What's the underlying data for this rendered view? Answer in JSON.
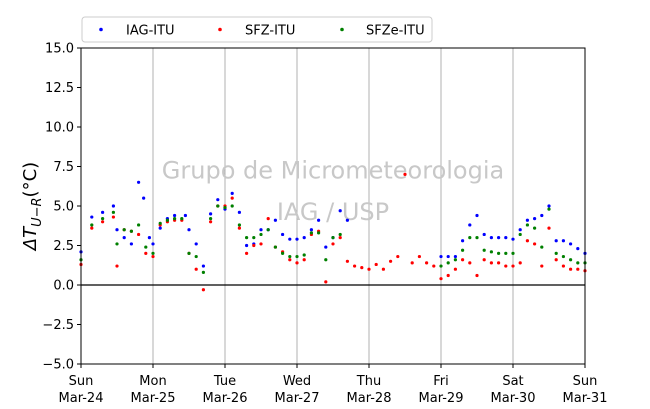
{
  "chart_data": {
    "type": "scatter",
    "title": "",
    "xlabel": "",
    "ylabel": "ΔT_{U−R}(°C)",
    "ylim": [
      -5.0,
      15.0
    ],
    "yticks": [
      -5.0,
      -2.5,
      0.0,
      2.5,
      5.0,
      7.5,
      10.0,
      12.5,
      15.0
    ],
    "ytick_labels": [
      "−5.0",
      "−2.5",
      "0.0",
      "2.5",
      "5.0",
      "7.5",
      "10.0",
      "12.5",
      "15.0"
    ],
    "xlim": [
      0,
      7
    ],
    "xtick_labels": [
      {
        "day": "Sun",
        "date": "Mar-24"
      },
      {
        "day": "Mon",
        "date": "Mar-25"
      },
      {
        "day": "Tue",
        "date": "Mar-26"
      },
      {
        "day": "Wed",
        "date": "Mar-27"
      },
      {
        "day": "Thu",
        "date": "Mar-28"
      },
      {
        "day": "Fri",
        "date": "Mar-29"
      },
      {
        "day": "Sat",
        "date": "Mar-30"
      },
      {
        "day": "Sun",
        "date": "Mar-31"
      }
    ],
    "grid": "vertical",
    "zero_line": 0.0,
    "legend_position": "top",
    "watermark": [
      "Grupo de Micrometeorologia",
      "IAG / USP"
    ],
    "series": [
      {
        "name": "IAG-ITU",
        "color": "#0000ff",
        "points": [
          [
            0.0,
            2.1
          ],
          [
            0.15,
            4.3
          ],
          [
            0.3,
            4.6
          ],
          [
            0.45,
            5.0
          ],
          [
            0.5,
            3.5
          ],
          [
            0.6,
            3.0
          ],
          [
            0.7,
            2.6
          ],
          [
            0.8,
            6.5
          ],
          [
            0.87,
            5.5
          ],
          [
            0.95,
            3.0
          ],
          [
            1.0,
            2.6
          ],
          [
            1.1,
            3.6
          ],
          [
            1.2,
            4.2
          ],
          [
            1.3,
            4.4
          ],
          [
            1.45,
            4.4
          ],
          [
            1.5,
            3.5
          ],
          [
            1.6,
            2.6
          ],
          [
            1.7,
            1.2
          ],
          [
            1.8,
            4.5
          ],
          [
            1.9,
            5.4
          ],
          [
            2.0,
            4.8
          ],
          [
            2.1,
            5.8
          ],
          [
            2.2,
            4.6
          ],
          [
            2.3,
            2.5
          ],
          [
            2.4,
            2.6
          ],
          [
            2.5,
            3.5
          ],
          [
            2.6,
            3.5
          ],
          [
            2.7,
            4.1
          ],
          [
            2.8,
            3.2
          ],
          [
            2.9,
            2.9
          ],
          [
            3.0,
            2.9
          ],
          [
            3.1,
            3.0
          ],
          [
            3.2,
            3.5
          ],
          [
            3.3,
            4.1
          ],
          [
            3.4,
            2.4
          ],
          [
            3.5,
            3.0
          ],
          [
            3.6,
            4.7
          ],
          [
            3.7,
            4.1
          ],
          [
            5.0,
            1.8
          ],
          [
            5.1,
            1.8
          ],
          [
            5.2,
            1.8
          ],
          [
            5.3,
            2.8
          ],
          [
            5.4,
            3.8
          ],
          [
            5.5,
            4.4
          ],
          [
            5.6,
            3.2
          ],
          [
            5.7,
            3.0
          ],
          [
            5.8,
            3.0
          ],
          [
            5.9,
            3.0
          ],
          [
            6.0,
            2.9
          ],
          [
            6.1,
            3.5
          ],
          [
            6.2,
            4.1
          ],
          [
            6.3,
            4.2
          ],
          [
            6.4,
            4.4
          ],
          [
            6.5,
            5.0
          ],
          [
            6.6,
            2.8
          ],
          [
            6.7,
            2.8
          ],
          [
            6.8,
            2.6
          ],
          [
            6.9,
            2.3
          ],
          [
            7.0,
            2.0
          ]
        ]
      },
      {
        "name": "SFZ-ITU",
        "color": "#ff0000",
        "points": [
          [
            0.0,
            1.3
          ],
          [
            0.15,
            3.6
          ],
          [
            0.3,
            4.0
          ],
          [
            0.45,
            4.3
          ],
          [
            0.5,
            1.2
          ],
          [
            0.6,
            3.5
          ],
          [
            0.7,
            3.4
          ],
          [
            0.8,
            3.2
          ],
          [
            0.9,
            2.0
          ],
          [
            1.0,
            1.8
          ],
          [
            1.1,
            3.8
          ],
          [
            1.2,
            4.0
          ],
          [
            1.3,
            4.1
          ],
          [
            1.4,
            4.1
          ],
          [
            1.5,
            2.0
          ],
          [
            1.6,
            1.0
          ],
          [
            1.7,
            -0.3
          ],
          [
            1.8,
            4.0
          ],
          [
            1.9,
            5.0
          ],
          [
            2.0,
            5.0
          ],
          [
            2.1,
            5.5
          ],
          [
            2.2,
            3.6
          ],
          [
            2.3,
            2.0
          ],
          [
            2.4,
            2.5
          ],
          [
            2.5,
            2.6
          ],
          [
            2.6,
            4.2
          ],
          [
            2.7,
            2.4
          ],
          [
            2.8,
            2.1
          ],
          [
            2.9,
            1.6
          ],
          [
            3.0,
            1.4
          ],
          [
            3.1,
            1.6
          ],
          [
            3.2,
            3.2
          ],
          [
            3.3,
            3.4
          ],
          [
            3.4,
            0.2
          ],
          [
            3.5,
            2.6
          ],
          [
            3.6,
            3.0
          ],
          [
            3.7,
            1.5
          ],
          [
            3.8,
            1.2
          ],
          [
            3.9,
            1.1
          ],
          [
            4.0,
            1.0
          ],
          [
            4.1,
            1.3
          ],
          [
            4.2,
            1.0
          ],
          [
            4.3,
            1.5
          ],
          [
            4.4,
            1.8
          ],
          [
            4.5,
            7.0
          ],
          [
            4.6,
            1.4
          ],
          [
            4.7,
            1.8
          ],
          [
            4.8,
            1.4
          ],
          [
            4.9,
            1.2
          ],
          [
            5.0,
            0.4
          ],
          [
            5.1,
            0.6
          ],
          [
            5.2,
            1.0
          ],
          [
            5.3,
            1.6
          ],
          [
            5.4,
            1.4
          ],
          [
            5.5,
            0.6
          ],
          [
            5.6,
            1.6
          ],
          [
            5.7,
            1.4
          ],
          [
            5.8,
            1.4
          ],
          [
            5.9,
            1.2
          ],
          [
            6.0,
            1.2
          ],
          [
            6.1,
            1.4
          ],
          [
            6.2,
            2.8
          ],
          [
            6.3,
            2.6
          ],
          [
            6.4,
            1.2
          ],
          [
            6.5,
            3.6
          ],
          [
            6.6,
            1.6
          ],
          [
            6.7,
            1.2
          ],
          [
            6.8,
            1.0
          ],
          [
            6.9,
            1.0
          ],
          [
            7.0,
            0.9
          ]
        ]
      },
      {
        "name": "SFZe-ITU",
        "color": "#008000",
        "points": [
          [
            0.0,
            1.6
          ],
          [
            0.15,
            3.8
          ],
          [
            0.3,
            4.2
          ],
          [
            0.45,
            4.6
          ],
          [
            0.5,
            2.6
          ],
          [
            0.6,
            3.5
          ],
          [
            0.7,
            3.4
          ],
          [
            0.8,
            3.8
          ],
          [
            0.9,
            2.4
          ],
          [
            1.0,
            2.0
          ],
          [
            1.1,
            3.9
          ],
          [
            1.2,
            4.1
          ],
          [
            1.3,
            4.2
          ],
          [
            1.4,
            4.2
          ],
          [
            1.5,
            2.0
          ],
          [
            1.6,
            1.8
          ],
          [
            1.7,
            0.8
          ],
          [
            1.8,
            4.2
          ],
          [
            1.9,
            5.0
          ],
          [
            2.0,
            4.9
          ],
          [
            2.1,
            5.0
          ],
          [
            2.2,
            3.8
          ],
          [
            2.3,
            3.0
          ],
          [
            2.4,
            3.0
          ],
          [
            2.5,
            3.2
          ],
          [
            2.6,
            3.5
          ],
          [
            2.7,
            2.4
          ],
          [
            2.8,
            2.0
          ],
          [
            2.9,
            1.8
          ],
          [
            3.0,
            1.8
          ],
          [
            3.1,
            1.9
          ],
          [
            3.2,
            3.3
          ],
          [
            3.3,
            3.3
          ],
          [
            3.4,
            1.6
          ],
          [
            3.5,
            3.0
          ],
          [
            3.6,
            3.2
          ],
          [
            5.0,
            1.2
          ],
          [
            5.1,
            1.4
          ],
          [
            5.2,
            1.6
          ],
          [
            5.3,
            2.2
          ],
          [
            5.4,
            3.0
          ],
          [
            5.5,
            3.0
          ],
          [
            5.6,
            2.2
          ],
          [
            5.7,
            2.1
          ],
          [
            5.8,
            2.0
          ],
          [
            5.9,
            2.0
          ],
          [
            6.0,
            2.0
          ],
          [
            6.1,
            3.2
          ],
          [
            6.2,
            3.8
          ],
          [
            6.3,
            3.6
          ],
          [
            6.4,
            2.4
          ],
          [
            6.5,
            4.8
          ],
          [
            6.6,
            2.0
          ],
          [
            6.7,
            1.8
          ],
          [
            6.8,
            1.6
          ],
          [
            6.9,
            1.4
          ],
          [
            7.0,
            1.4
          ]
        ]
      }
    ]
  }
}
